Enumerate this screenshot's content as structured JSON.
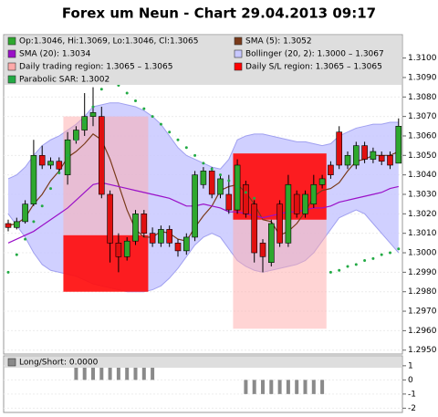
{
  "chart_data": {
    "type": "candlestick",
    "title": "Forex um Neun - Chart 29.04.2013 09:17",
    "ylim": [
      1.2948,
      1.3112
    ],
    "yticks": [
      {
        "value": 1.295,
        "label": "1.2950"
      },
      {
        "value": 1.296,
        "label": "1.2960"
      },
      {
        "value": 1.297,
        "label": "1.2970"
      },
      {
        "value": 1.298,
        "label": "1.2980"
      },
      {
        "value": 1.299,
        "label": "1.2990"
      },
      {
        "value": 1.3,
        "label": "1.3000"
      },
      {
        "value": 1.301,
        "label": "1.3010"
      },
      {
        "value": 1.302,
        "label": "1.3020"
      },
      {
        "value": 1.303,
        "label": "1.3030"
      },
      {
        "value": 1.304,
        "label": "1.3040"
      },
      {
        "value": 1.305,
        "label": "1.3050"
      },
      {
        "value": 1.306,
        "label": "1.3060"
      },
      {
        "value": 1.307,
        "label": "1.3070"
      },
      {
        "value": 1.308,
        "label": "1.3080"
      },
      {
        "value": 1.309,
        "label": "1.3090"
      },
      {
        "value": 1.31,
        "label": "1.3100"
      }
    ],
    "grid": true,
    "candles": {
      "name": "Op:1.3046, Hi:1.3069, Lo:1.3046, Cl:1.3065",
      "up_color": "#2ea82e",
      "down_color": "#e01010",
      "open": [
        1.3015,
        1.3013,
        1.3016,
        1.3025,
        1.305,
        1.3045,
        1.3047,
        1.304,
        1.3058,
        1.3063,
        1.307,
        1.307,
        1.303,
        1.3005,
        1.2998,
        1.3006,
        1.302,
        1.301,
        1.3005,
        1.3012,
        1.3005,
        1.3001,
        1.3008,
        1.3035,
        1.3042,
        1.303,
        1.303,
        1.3022,
        1.3035,
        1.3025,
        1.3005,
        1.2995,
        1.3025,
        1.3005,
        1.303,
        1.302,
        1.3025,
        1.3035,
        1.3045,
        1.3062,
        1.3045,
        1.3045,
        1.3055,
        1.3048,
        1.305,
        1.305,
        1.3046
      ],
      "high": [
        1.3017,
        1.3018,
        1.3027,
        1.3058,
        1.3055,
        1.3049,
        1.3049,
        1.3062,
        1.3065,
        1.3082,
        1.3085,
        1.3075,
        1.3032,
        1.301,
        1.3008,
        1.3022,
        1.3022,
        1.3013,
        1.3014,
        1.3014,
        1.3007,
        1.301,
        1.3042,
        1.3044,
        1.3044,
        1.304,
        1.304,
        1.3048,
        1.3037,
        1.3027,
        1.3007,
        1.3017,
        1.3027,
        1.304,
        1.3032,
        1.3032,
        1.304,
        1.304,
        1.3047,
        1.3065,
        1.3052,
        1.3057,
        1.3057,
        1.3054,
        1.3052,
        1.3052,
        1.3069
      ],
      "low": [
        1.3011,
        1.3012,
        1.3015,
        1.3024,
        1.3043,
        1.3043,
        1.3041,
        1.3035,
        1.3056,
        1.306,
        1.3065,
        1.3028,
        1.2995,
        1.299,
        1.2996,
        1.3004,
        1.3008,
        1.3003,
        1.3003,
        1.3003,
        1.2998,
        1.2999,
        1.3006,
        1.3033,
        1.3028,
        1.3028,
        1.302,
        1.302,
        1.3018,
        1.2995,
        1.299,
        1.2993,
        1.3003,
        1.3003,
        1.3018,
        1.3018,
        1.3023,
        1.3033,
        1.3038,
        1.3043,
        1.3043,
        1.3043,
        1.3046,
        1.3046,
        1.3045,
        1.3043,
        1.3046
      ],
      "close": [
        1.3013,
        1.3016,
        1.3025,
        1.305,
        1.3045,
        1.3047,
        1.3043,
        1.3058,
        1.3063,
        1.307,
        1.3072,
        1.303,
        1.3005,
        1.2998,
        1.3006,
        1.302,
        1.301,
        1.3005,
        1.3012,
        1.3005,
        1.3001,
        1.3008,
        1.304,
        1.3042,
        1.303,
        1.3038,
        1.3022,
        1.3045,
        1.302,
        1.3,
        1.2998,
        1.3015,
        1.3005,
        1.3035,
        1.302,
        1.303,
        1.3035,
        1.3038,
        1.304,
        1.3045,
        1.305,
        1.3055,
        1.3048,
        1.3052,
        1.3047,
        1.3045,
        1.3065
      ]
    },
    "lines": [
      {
        "name": "SMA (5): 1.3052",
        "color": "#7a3a1a",
        "values": [
          1.3014,
          1.3015,
          1.3018,
          1.3025,
          1.303,
          1.3037,
          1.3042,
          1.3049,
          1.3052,
          1.3056,
          1.3061,
          1.3058,
          1.3048,
          1.3035,
          1.3022,
          1.3012,
          1.3008,
          1.3008,
          1.3011,
          1.301,
          1.3007,
          1.3006,
          1.3013,
          1.3019,
          1.3024,
          1.3032,
          1.3034,
          1.3035,
          1.3031,
          1.3025,
          1.3017,
          1.3016,
          1.3009,
          1.3011,
          1.3015,
          1.3021,
          1.3029,
          1.3032,
          1.3033,
          1.3036,
          1.3042,
          1.3047,
          1.3048,
          1.305,
          1.305,
          1.305,
          1.3052
        ]
      },
      {
        "name": "SMA (20): 1.3034",
        "color": "#9a10c8",
        "values": [
          1.3005,
          1.3007,
          1.3009,
          1.3011,
          1.3014,
          1.3017,
          1.302,
          1.3023,
          1.3027,
          1.3031,
          1.3035,
          1.3036,
          1.3035,
          1.3034,
          1.3033,
          1.3032,
          1.3031,
          1.303,
          1.3029,
          1.3028,
          1.3026,
          1.3024,
          1.3024,
          1.3025,
          1.3024,
          1.3023,
          1.3021,
          1.3021,
          1.302,
          1.3019,
          1.3018,
          1.3019,
          1.302,
          1.3021,
          1.3021,
          1.3022,
          1.3023,
          1.3023,
          1.3024,
          1.3026,
          1.3027,
          1.3028,
          1.3029,
          1.303,
          1.3031,
          1.3033,
          1.3034
        ]
      }
    ],
    "bands": {
      "name": "Bollinger (20, 2): 1.3000 – 1.3067",
      "color": "#c8c8ff",
      "upper": [
        1.3038,
        1.304,
        1.3044,
        1.305,
        1.3055,
        1.3058,
        1.306,
        1.3063,
        1.3066,
        1.307,
        1.3075,
        1.3076,
        1.3077,
        1.3077,
        1.3076,
        1.3075,
        1.3073,
        1.307,
        1.3066,
        1.306,
        1.3054,
        1.305,
        1.3048,
        1.3046,
        1.3044,
        1.3043,
        1.3048,
        1.3058,
        1.306,
        1.3061,
        1.3061,
        1.306,
        1.3059,
        1.3058,
        1.3057,
        1.3057,
        1.3056,
        1.3055,
        1.3056,
        1.306,
        1.3062,
        1.3064,
        1.3065,
        1.3066,
        1.3066,
        1.3067,
        1.3067
      ],
      "lower": [
        1.302,
        1.3014,
        1.3008,
        1.3,
        1.2994,
        1.2991,
        1.299,
        1.2989,
        1.2988,
        1.2986,
        1.2984,
        1.2983,
        1.2982,
        1.2981,
        1.298,
        1.298,
        1.298,
        1.2981,
        1.2983,
        1.2987,
        1.2992,
        1.2998,
        1.3004,
        1.3008,
        1.301,
        1.3008,
        1.3002,
        1.2996,
        1.2993,
        1.2991,
        1.299,
        1.2991,
        1.2992,
        1.2993,
        1.2994,
        1.2996,
        1.3,
        1.3006,
        1.3012,
        1.3018,
        1.302,
        1.3022,
        1.302,
        1.3015,
        1.301,
        1.3005,
        1.3
      ]
    },
    "regions": [
      {
        "name": "Daily trading region: 1.3065 – 1.3065",
        "color": "#ffaaaa",
        "spans": [
          {
            "from": 7,
            "to": 16,
            "high": 1.307,
            "low": 1.298
          },
          {
            "from": 27,
            "to": 37,
            "high": 1.3051,
            "low": 1.2961
          }
        ]
      },
      {
        "name": "Daily S/L region: 1.3065 – 1.3065",
        "color": "#ff0000",
        "spans": [
          {
            "from": 7,
            "to": 16,
            "high": 1.3009,
            "low": 1.298
          },
          {
            "from": 27,
            "to": 37,
            "high": 1.3051,
            "low": 1.3017
          }
        ]
      }
    ],
    "sar": {
      "name": "Parabolic SAR: 1.3002",
      "color": "#22aa44",
      "values": [
        1.299,
        1.2999,
        1.3007,
        1.3016,
        1.3024,
        1.3033,
        1.3041,
        1.305,
        1.3058,
        1.3067,
        1.3075,
        1.3084,
        1.309,
        1.3086,
        1.3082,
        1.3078,
        1.3074,
        1.307,
        1.3066,
        1.3062,
        1.3058,
        1.3054,
        1.305,
        1.3046,
        1.3043,
        1.304,
        1.3037,
        1.3034,
        1.3031,
        1.3028,
        null,
        null,
        null,
        null,
        null,
        null,
        null,
        null,
        1.299,
        1.2991,
        1.2993,
        1.2994,
        1.2996,
        1.2997,
        1.2999,
        1.3,
        1.3002
      ]
    },
    "indicator": {
      "name": "Long/Short: 0.0000",
      "color": "#8a8a8a",
      "ylim": [
        -2.3,
        1.7
      ],
      "yticks": [
        1,
        0,
        -1,
        -2
      ],
      "values": [
        0,
        0,
        0,
        0,
        0,
        0,
        0,
        0,
        1,
        1,
        1,
        1,
        1,
        1,
        1,
        1,
        1,
        1,
        0,
        0,
        0,
        0,
        0,
        0,
        0,
        0,
        0,
        0,
        -1,
        -1,
        -1,
        -1,
        -1,
        -1,
        -1,
        -1,
        -1,
        -1,
        0,
        0,
        0,
        0,
        0,
        0,
        0,
        0,
        0
      ]
    }
  }
}
